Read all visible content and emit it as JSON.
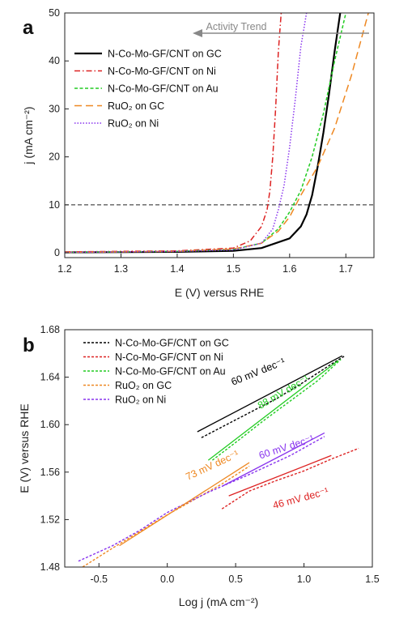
{
  "chart_data": [
    {
      "panel": "a",
      "type": "line",
      "xlabel": "E (V) versus RHE",
      "ylabel": "j (mA cm⁻²)",
      "xlim": [
        1.2,
        1.75
      ],
      "ylim": [
        -1,
        50
      ],
      "xticks": [
        1.2,
        1.3,
        1.4,
        1.5,
        1.6,
        1.7
      ],
      "yticks": [
        0,
        10,
        20,
        30,
        40,
        50
      ],
      "reference_line_y": 10,
      "annotation": "Activity Trend",
      "legend_position": "upper-left",
      "series": [
        {
          "name": "N-Co-Mo-GF/CNT on GC",
          "color": "#000000",
          "dash": "solid",
          "x": [
            1.2,
            1.4,
            1.5,
            1.55,
            1.6,
            1.62,
            1.63,
            1.64,
            1.65,
            1.66,
            1.67,
            1.68,
            1.69
          ],
          "y": [
            0.1,
            0.2,
            0.4,
            1.0,
            3.0,
            5.5,
            8.0,
            12.0,
            18.0,
            25.0,
            33.0,
            42.0,
            50.0
          ]
        },
        {
          "name": "N-Co-Mo-GF/CNT on Ni",
          "color": "#dd2222",
          "dash": "dashdot",
          "x": [
            1.2,
            1.4,
            1.5,
            1.53,
            1.55,
            1.56,
            1.565,
            1.57,
            1.575,
            1.58,
            1.585
          ],
          "y": [
            0.2,
            0.4,
            1.0,
            2.5,
            5.5,
            9.0,
            13.0,
            20.0,
            30.0,
            42.0,
            50.0
          ]
        },
        {
          "name": "N-Co-Mo-GF/CNT on Au",
          "color": "#22cc22",
          "dash": "dashed",
          "x": [
            1.2,
            1.4,
            1.5,
            1.55,
            1.58,
            1.6,
            1.62,
            1.64,
            1.66,
            1.68,
            1.7
          ],
          "y": [
            0.1,
            0.3,
            0.7,
            2.0,
            5.0,
            8.5,
            13.0,
            20.0,
            29.0,
            40.0,
            50.0
          ]
        },
        {
          "name": "RuO₂ on GC",
          "color": "#ee8822",
          "dash": "longdash",
          "x": [
            1.2,
            1.4,
            1.5,
            1.55,
            1.58,
            1.6,
            1.62,
            1.65,
            1.68,
            1.71,
            1.74
          ],
          "y": [
            0.1,
            0.3,
            0.8,
            2.0,
            4.5,
            7.5,
            12.0,
            18.0,
            26.0,
            37.0,
            50.0
          ]
        },
        {
          "name": "RuO₂ on Ni",
          "color": "#8833ee",
          "dash": "dotted",
          "x": [
            1.2,
            1.4,
            1.5,
            1.55,
            1.57,
            1.58,
            1.59,
            1.6,
            1.61,
            1.62,
            1.63
          ],
          "y": [
            0.1,
            0.3,
            0.6,
            2.0,
            5.0,
            9.0,
            14.0,
            22.0,
            32.0,
            43.0,
            50.0
          ]
        }
      ]
    },
    {
      "panel": "b",
      "type": "line",
      "xlabel": "Log j (mA cm⁻²)",
      "ylabel": "E (V) versus RHE",
      "xlim": [
        -0.75,
        1.5
      ],
      "ylim": [
        1.48,
        1.68
      ],
      "xticks": [
        -0.5,
        0.0,
        0.5,
        1.0,
        1.5
      ],
      "yticks": [
        1.48,
        1.52,
        1.56,
        1.6,
        1.64,
        1.68
      ],
      "xtick_labels": [
        "-0.5",
        "0.0",
        "0.5",
        "1.0",
        "1.5"
      ],
      "ytick_labels": [
        "1.48",
        "1.52",
        "1.56",
        "1.60",
        "1.64",
        "1.68"
      ],
      "legend_position": "upper-left",
      "series": [
        {
          "name": "N-Co-Mo-GF/CNT on GC",
          "color": "#000000",
          "x": [
            0.25,
            0.5,
            0.8,
            1.0,
            1.2,
            1.3
          ],
          "y": [
            1.589,
            1.604,
            1.622,
            1.636,
            1.651,
            1.658
          ]
        },
        {
          "name": "N-Co-Mo-GF/CNT on Ni",
          "color": "#dd2222",
          "x": [
            0.4,
            0.6,
            0.8,
            1.0,
            1.2,
            1.4
          ],
          "y": [
            1.529,
            1.544,
            1.553,
            1.561,
            1.571,
            1.58
          ]
        },
        {
          "name": "N-Co-Mo-GF/CNT on Au",
          "color": "#22cc22",
          "x": [
            0.33,
            0.5,
            0.7,
            0.9,
            1.1,
            1.27
          ],
          "y": [
            1.57,
            1.585,
            1.603,
            1.62,
            1.637,
            1.655
          ]
        },
        {
          "name": "RuO₂ on GC",
          "color": "#ee8822",
          "x": [
            -0.62,
            -0.4,
            -0.2,
            0.0,
            0.2,
            0.4,
            0.6
          ],
          "y": [
            1.48,
            1.496,
            1.51,
            1.524,
            1.537,
            1.55,
            1.565
          ]
        },
        {
          "name": "RuO₂ on Ni",
          "color": "#8833ee",
          "x": [
            -0.65,
            -0.4,
            -0.2,
            0.0,
            0.3,
            0.6,
            0.9,
            1.15
          ],
          "y": [
            1.485,
            1.498,
            1.511,
            1.526,
            1.543,
            1.558,
            1.574,
            1.59
          ]
        }
      ],
      "fits": [
        {
          "color": "#000000",
          "x": [
            0.22,
            1.28
          ],
          "y": [
            1.594,
            1.658
          ]
        },
        {
          "color": "#dd2222",
          "x": [
            0.45,
            1.2
          ],
          "y": [
            1.54,
            1.574
          ]
        },
        {
          "color": "#22cc22",
          "x": [
            0.3,
            1.25
          ],
          "y": [
            1.57,
            1.654
          ]
        },
        {
          "color": "#ee8822",
          "x": [
            -0.35,
            0.6
          ],
          "y": [
            1.498,
            1.568
          ]
        },
        {
          "color": "#8833ee",
          "x": [
            0.4,
            1.15
          ],
          "y": [
            1.548,
            1.593
          ]
        }
      ],
      "annotations": [
        {
          "text": "60 mV dec⁻¹",
          "color": "#000000",
          "x": 0.48,
          "y": 1.633,
          "angle": -22
        },
        {
          "text": "88 mV dec⁻¹",
          "color": "#22cc22",
          "x": 0.68,
          "y": 1.613,
          "angle": -30
        },
        {
          "text": "60 mV dec⁻¹",
          "color": "#8833ee",
          "x": 0.68,
          "y": 1.571,
          "angle": -18
        },
        {
          "text": "73 mV dec⁻¹",
          "color": "#ee8822",
          "x": 0.15,
          "y": 1.553,
          "angle": -25
        },
        {
          "text": "46 mV dec⁻¹",
          "color": "#dd2222",
          "x": 0.78,
          "y": 1.529,
          "angle": -15
        }
      ]
    }
  ]
}
